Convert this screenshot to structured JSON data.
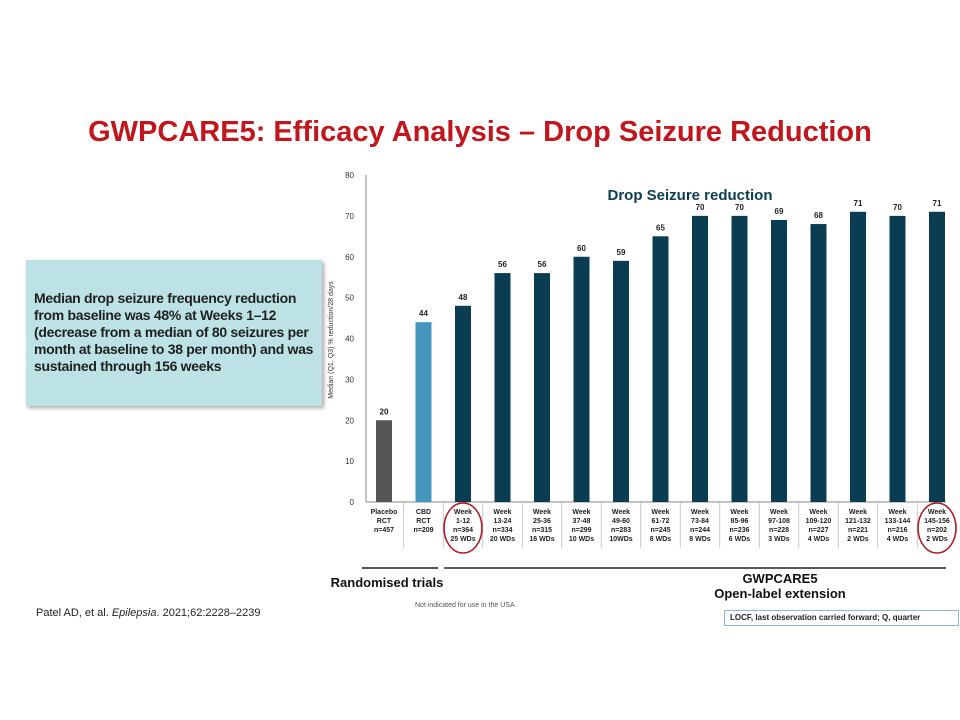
{
  "slide": {
    "title": "GWPCARE5: Efficacy Analysis – Drop Seizure Reduction",
    "callout": "Median drop seizure frequency reduction from baseline was 48% at Weeks 1–12 (decrease from a median of 80 seizures per month at baseline to 38 per month) and was sustained through 156 weeks",
    "randomised_label": "Randomised trials",
    "ole_label_1": "GWPCARE5",
    "ole_label_2": "Open-label extension",
    "footnote_small": "Not indicated for use in the USA",
    "reference_prefix": "Patel AD, et al. ",
    "reference_journal": "Epilepsia",
    "reference_suffix": ". 2021;62:2228–2239",
    "abbreviations": "LOCF, last observation carried forward; Q, quarter"
  },
  "chart_data": {
    "type": "bar",
    "title": "Drop Seizure reduction",
    "ylabel": "Median (Q1, Q3) % reduction/28 days",
    "ylim": [
      0,
      80
    ],
    "yticks": [
      "0",
      "10",
      "20",
      "30",
      "40",
      "50",
      "60",
      "70",
      "80"
    ],
    "categories": [
      [
        "Placebo",
        "RCT",
        "n=457"
      ],
      [
        "CBD",
        "RCT",
        "n=209"
      ],
      [
        "Week",
        "1-12",
        "n=364",
        "25 WDs"
      ],
      [
        "Week",
        "13-24",
        "n=334",
        "20 WDs"
      ],
      [
        "Week",
        "25-36",
        "n=315",
        "16 WDs"
      ],
      [
        "Week",
        "37-48",
        "n=299",
        "10 WDs"
      ],
      [
        "Week",
        "49-60",
        "n=283",
        "10WDs"
      ],
      [
        "Week",
        "61-72",
        "n=245",
        "8 WDs"
      ],
      [
        "Week",
        "73-84",
        "n=244",
        "8 WDs"
      ],
      [
        "Week",
        "85-96",
        "n=236",
        "6 WDs"
      ],
      [
        "Week",
        "97-108",
        "n=228",
        "3 WDs"
      ],
      [
        "Week",
        "109-120",
        "n=227",
        "4 WDs"
      ],
      [
        "Week",
        "121-132",
        "n=221",
        "2 WDs"
      ],
      [
        "Week",
        "133-144",
        "n=216",
        "4 WDs"
      ],
      [
        "Week",
        "145-156",
        "n=202",
        "2 WDs"
      ]
    ],
    "values": [
      20,
      44,
      48,
      56,
      56,
      60,
      59,
      65,
      70,
      70,
      69,
      68,
      71,
      70,
      71
    ],
    "data_labels": [
      "20",
      "44",
      "48",
      "56",
      "56",
      "60",
      "59",
      "65",
      "70",
      "70",
      "69",
      "68",
      "71",
      "70",
      "71"
    ],
    "bar_colors": [
      "#555555",
      "#4596bc",
      "#0a3d52",
      "#0a3d52",
      "#0a3d52",
      "#0a3d52",
      "#0a3d52",
      "#0a3d52",
      "#0a3d52",
      "#0a3d52",
      "#0a3d52",
      "#0a3d52",
      "#0a3d52",
      "#0a3d52",
      "#0a3d52"
    ],
    "highlighted": [
      2,
      14
    ],
    "highlight_color": "#b01c24",
    "grid": false
  }
}
